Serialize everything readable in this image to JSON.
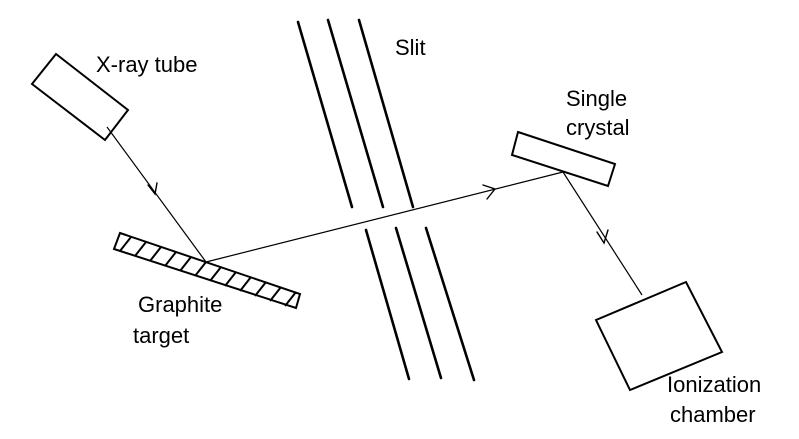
{
  "labels": {
    "xray_tube": "X-ray tube",
    "slit": "Slit",
    "single_crystal_line1": "Single",
    "single_crystal_line2": "crystal",
    "graphite_target_line1": "Graphite",
    "graphite_target_line2": "target",
    "ionization_chamber_line1": "Ionization",
    "ionization_chamber_line2": "chamber"
  }
}
